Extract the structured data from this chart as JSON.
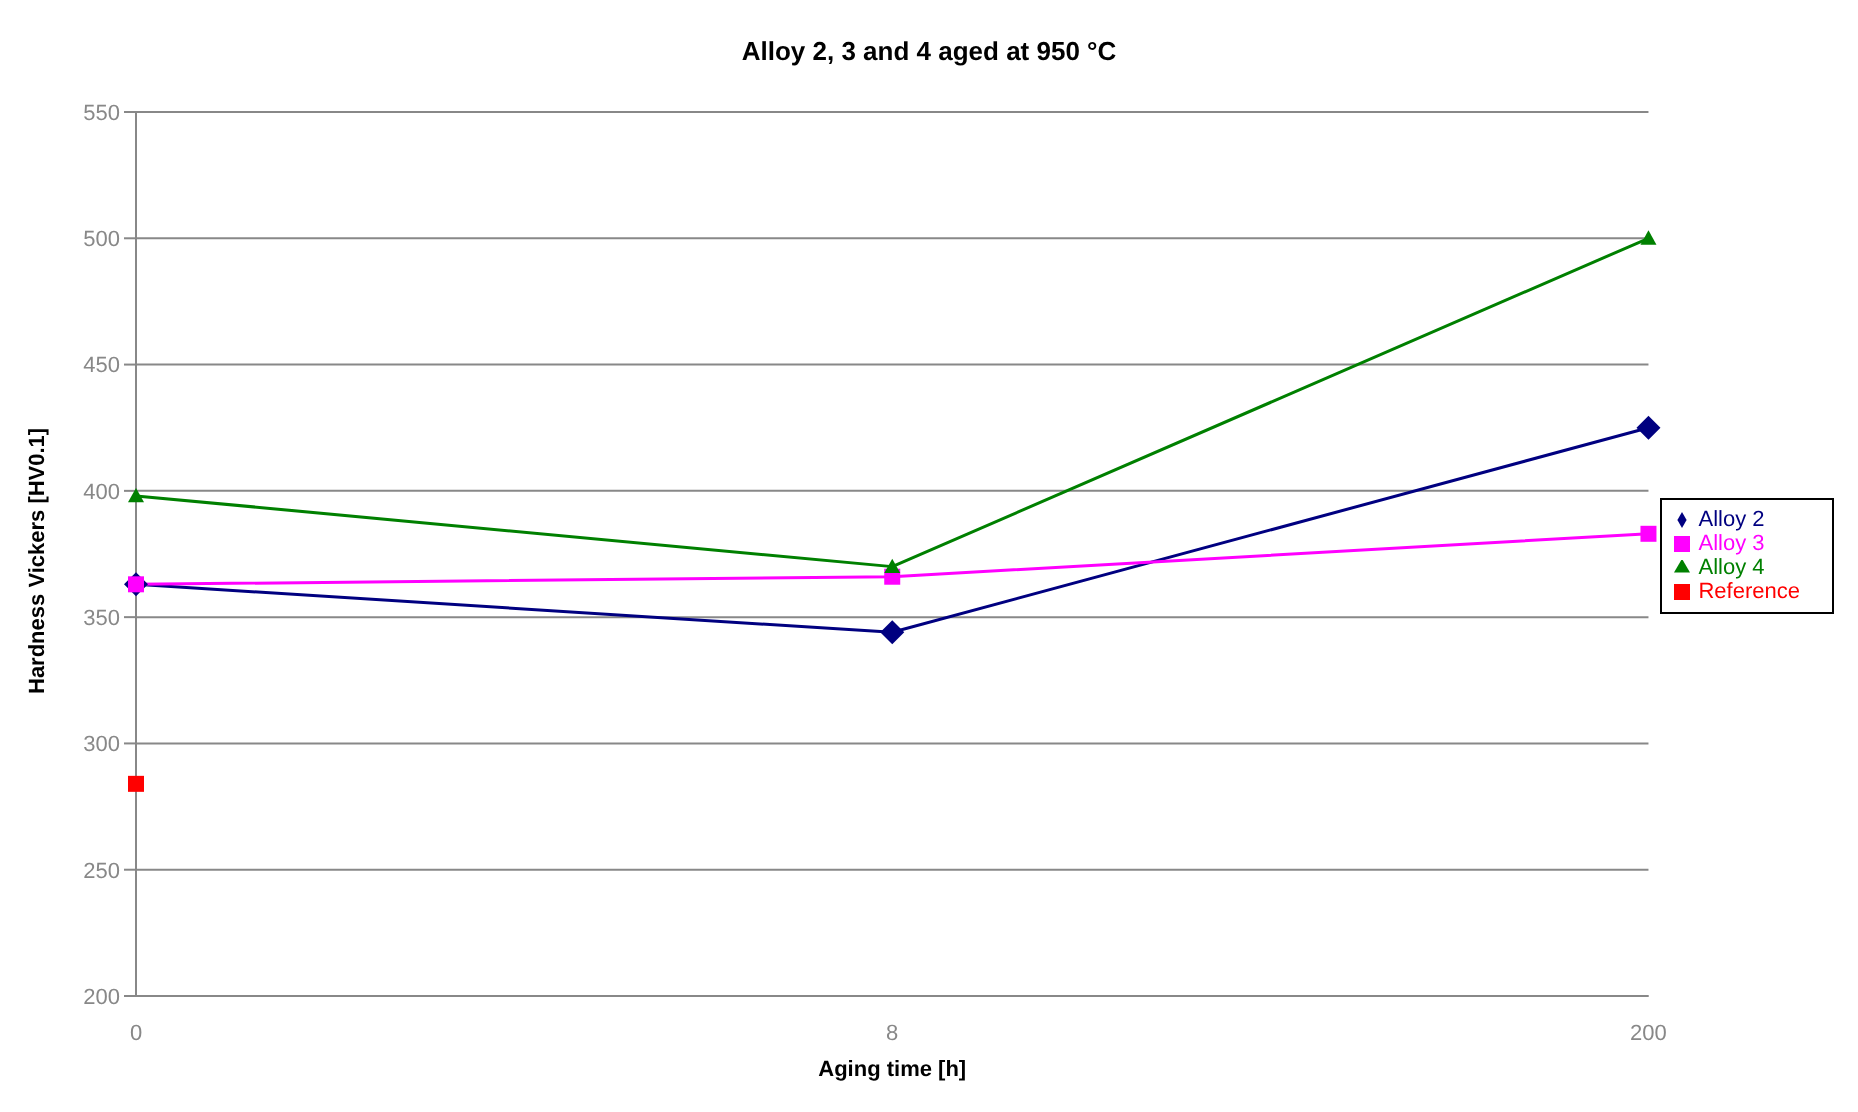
{
  "chart_data": {
    "type": "line",
    "title": "Alloy 2, 3 and 4 aged at 950 °C",
    "xlabel": "Aging time [h]",
    "ylabel": "Hardness Vickers [HV0.1]",
    "categories": [
      "0",
      "8",
      "200"
    ],
    "series": [
      {
        "name": "Alloy 2",
        "color": "#000080",
        "values": [
          363,
          344,
          425
        ],
        "marker": "diamond"
      },
      {
        "name": "Alloy 3",
        "color": "#ff00ff",
        "values": [
          363,
          366,
          383
        ],
        "marker": "square"
      },
      {
        "name": "Alloy 4",
        "color": "#008000",
        "values": [
          398,
          370,
          500
        ],
        "marker": "triangle"
      },
      {
        "name": "Reference",
        "color": "#ff0000",
        "values": [
          284,
          null,
          null
        ],
        "type": "scatter",
        "marker": "square"
      }
    ],
    "ylim": [
      200,
      550
    ],
    "yticks": [
      200,
      250,
      300,
      350,
      400,
      450,
      500,
      550
    ],
    "grid": "y",
    "legend": "right",
    "line_style": "solid"
  }
}
